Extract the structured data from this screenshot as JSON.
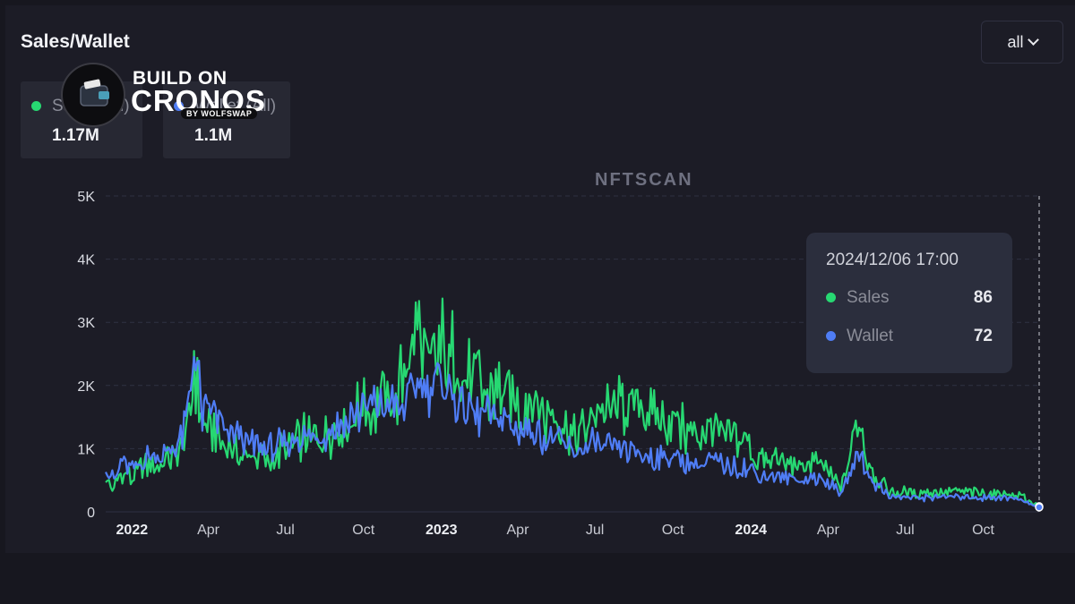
{
  "header": {
    "title": "Sales/Wallet",
    "range_label": "all"
  },
  "stats": [
    {
      "label": "Sales (All)",
      "value": "1.17M",
      "color": "#27d872"
    },
    {
      "label": "Wallet (All)",
      "value": "1.1M",
      "color": "#4f7df5"
    }
  ],
  "logo": {
    "line1": "BUILD ON",
    "line2": "CRONOS",
    "line3": "BY WOLFSWAP"
  },
  "watermark": "NFTSCAN",
  "tooltip": {
    "time": "2024/12/06 17:00",
    "rows": [
      {
        "name": "Sales",
        "value": "86",
        "color": "#27d872"
      },
      {
        "name": "Wallet",
        "value": "72",
        "color": "#4f7df5"
      }
    ]
  },
  "chart_data": {
    "type": "area",
    "x_range": [
      "2021-12-01",
      "2024-12-06"
    ],
    "ylim": [
      0,
      5000
    ],
    "y_ticks": [
      0,
      1000,
      2000,
      3000,
      4000,
      5000
    ],
    "y_tick_labels": [
      "0",
      "1K",
      "2K",
      "3K",
      "4K",
      "5K"
    ],
    "x_ticks": [
      {
        "date": "2022-01-01",
        "label": "2022",
        "bold": true
      },
      {
        "date": "2022-04-01",
        "label": "Apr",
        "bold": false
      },
      {
        "date": "2022-07-01",
        "label": "Jul",
        "bold": false
      },
      {
        "date": "2022-10-01",
        "label": "Oct",
        "bold": false
      },
      {
        "date": "2023-01-01",
        "label": "2023",
        "bold": true
      },
      {
        "date": "2023-04-01",
        "label": "Apr",
        "bold": false
      },
      {
        "date": "2023-07-01",
        "label": "Jul",
        "bold": false
      },
      {
        "date": "2023-10-01",
        "label": "Oct",
        "bold": false
      },
      {
        "date": "2024-01-01",
        "label": "2024",
        "bold": true
      },
      {
        "date": "2024-04-01",
        "label": "Apr",
        "bold": false
      },
      {
        "date": "2024-07-01",
        "label": "Jul",
        "bold": false
      },
      {
        "date": "2024-10-01",
        "label": "Oct",
        "bold": false
      }
    ],
    "grid": "horizontal dashed",
    "series": [
      {
        "name": "Sales",
        "color": "#27d872",
        "points": [
          [
            "2021-12-01",
            500
          ],
          [
            "2021-12-10",
            350
          ],
          [
            "2021-12-20",
            650
          ],
          [
            "2022-01-01",
            520
          ],
          [
            "2022-01-15",
            700
          ],
          [
            "2022-02-01",
            780
          ],
          [
            "2022-02-15",
            800
          ],
          [
            "2022-03-01",
            1000
          ],
          [
            "2022-03-10",
            1500
          ],
          [
            "2022-03-15",
            2300
          ],
          [
            "2022-03-25",
            1400
          ],
          [
            "2022-04-10",
            1300
          ],
          [
            "2022-04-25",
            1000
          ],
          [
            "2022-05-10",
            950
          ],
          [
            "2022-05-25",
            900
          ],
          [
            "2022-06-10",
            850
          ],
          [
            "2022-06-25",
            950
          ],
          [
            "2022-07-10",
            1000
          ],
          [
            "2022-07-25",
            1200
          ],
          [
            "2022-08-10",
            1150
          ],
          [
            "2022-08-25",
            1250
          ],
          [
            "2022-09-10",
            1400
          ],
          [
            "2022-09-25",
            1550
          ],
          [
            "2022-10-10",
            1750
          ],
          [
            "2022-10-25",
            1750
          ],
          [
            "2022-11-10",
            1850
          ],
          [
            "2022-11-25",
            2300
          ],
          [
            "2022-12-05",
            2900
          ],
          [
            "2022-12-15",
            2400
          ],
          [
            "2023-01-01",
            2600
          ],
          [
            "2023-01-15",
            2400
          ],
          [
            "2023-02-01",
            2100
          ],
          [
            "2023-02-15",
            1950
          ],
          [
            "2023-03-01",
            1900
          ],
          [
            "2023-03-15",
            1850
          ],
          [
            "2023-04-01",
            1750
          ],
          [
            "2023-04-15",
            1700
          ],
          [
            "2023-05-01",
            1600
          ],
          [
            "2023-05-15",
            1500
          ],
          [
            "2023-06-01",
            1300
          ],
          [
            "2023-06-15",
            1200
          ],
          [
            "2023-07-01",
            1600
          ],
          [
            "2023-07-15",
            1500
          ],
          [
            "2023-08-01",
            1700
          ],
          [
            "2023-08-15",
            1650
          ],
          [
            "2023-09-01",
            1500
          ],
          [
            "2023-09-15",
            1400
          ],
          [
            "2023-10-01",
            1550
          ],
          [
            "2023-10-15",
            1300
          ],
          [
            "2023-11-01",
            1200
          ],
          [
            "2023-11-20",
            1300
          ],
          [
            "2023-12-01",
            1100
          ],
          [
            "2023-12-15",
            1150
          ],
          [
            "2024-01-01",
            1000
          ],
          [
            "2024-01-15",
            800
          ],
          [
            "2024-02-01",
            850
          ],
          [
            "2024-02-15",
            750
          ],
          [
            "2024-03-01",
            700
          ],
          [
            "2024-03-15",
            800
          ],
          [
            "2024-04-01",
            600
          ],
          [
            "2024-04-15",
            400
          ],
          [
            "2024-04-25",
            700
          ],
          [
            "2024-05-08",
            1500
          ],
          [
            "2024-05-15",
            900
          ],
          [
            "2024-05-25",
            600
          ],
          [
            "2024-06-15",
            300
          ],
          [
            "2024-07-01",
            300
          ],
          [
            "2024-07-15",
            280
          ],
          [
            "2024-08-01",
            300
          ],
          [
            "2024-08-15",
            320
          ],
          [
            "2024-09-01",
            330
          ],
          [
            "2024-09-15",
            300
          ],
          [
            "2024-10-01",
            280
          ],
          [
            "2024-10-15",
            300
          ],
          [
            "2024-11-01",
            280
          ],
          [
            "2024-11-15",
            250
          ],
          [
            "2024-12-06",
            86
          ]
        ]
      },
      {
        "name": "Wallet",
        "color": "#4f7df5",
        "points": [
          [
            "2021-12-01",
            700
          ],
          [
            "2021-12-10",
            500
          ],
          [
            "2021-12-20",
            800
          ],
          [
            "2022-01-01",
            650
          ],
          [
            "2022-01-15",
            850
          ],
          [
            "2022-02-01",
            900
          ],
          [
            "2022-02-15",
            950
          ],
          [
            "2022-03-01",
            1200
          ],
          [
            "2022-03-10",
            1700
          ],
          [
            "2022-03-15",
            2600
          ],
          [
            "2022-03-25",
            1600
          ],
          [
            "2022-04-10",
            1550
          ],
          [
            "2022-04-25",
            1200
          ],
          [
            "2022-05-10",
            1150
          ],
          [
            "2022-05-25",
            1050
          ],
          [
            "2022-06-10",
            1000
          ],
          [
            "2022-06-25",
            1050
          ],
          [
            "2022-07-10",
            1050
          ],
          [
            "2022-07-25",
            1250
          ],
          [
            "2022-08-10",
            1200
          ],
          [
            "2022-08-25",
            1300
          ],
          [
            "2022-09-10",
            1450
          ],
          [
            "2022-09-25",
            1550
          ],
          [
            "2022-10-10",
            1700
          ],
          [
            "2022-10-25",
            1650
          ],
          [
            "2022-11-10",
            1700
          ],
          [
            "2022-11-25",
            1900
          ],
          [
            "2022-12-05",
            2200
          ],
          [
            "2022-12-15",
            1950
          ],
          [
            "2023-01-01",
            2000
          ],
          [
            "2023-01-15",
            1850
          ],
          [
            "2023-02-01",
            1650
          ],
          [
            "2023-02-15",
            1550
          ],
          [
            "2023-03-01",
            1500
          ],
          [
            "2023-03-15",
            1450
          ],
          [
            "2023-04-01",
            1350
          ],
          [
            "2023-04-15",
            1300
          ],
          [
            "2023-05-01",
            1200
          ],
          [
            "2023-05-15",
            1150
          ],
          [
            "2023-06-01",
            1000
          ],
          [
            "2023-06-15",
            950
          ],
          [
            "2023-07-01",
            1100
          ],
          [
            "2023-07-15",
            1000
          ],
          [
            "2023-08-01",
            1050
          ],
          [
            "2023-08-15",
            950
          ],
          [
            "2023-09-01",
            900
          ],
          [
            "2023-09-15",
            850
          ],
          [
            "2023-10-01",
            900
          ],
          [
            "2023-10-15",
            800
          ],
          [
            "2023-11-01",
            780
          ],
          [
            "2023-11-20",
            800
          ],
          [
            "2023-12-01",
            700
          ],
          [
            "2023-12-15",
            750
          ],
          [
            "2024-01-01",
            650
          ],
          [
            "2024-01-15",
            550
          ],
          [
            "2024-02-01",
            600
          ],
          [
            "2024-02-15",
            550
          ],
          [
            "2024-03-01",
            500
          ],
          [
            "2024-03-15",
            550
          ],
          [
            "2024-04-01",
            450
          ],
          [
            "2024-04-15",
            300
          ],
          [
            "2024-04-25",
            500
          ],
          [
            "2024-05-08",
            1000
          ],
          [
            "2024-05-15",
            650
          ],
          [
            "2024-05-25",
            450
          ],
          [
            "2024-06-15",
            250
          ],
          [
            "2024-07-01",
            230
          ],
          [
            "2024-07-15",
            220
          ],
          [
            "2024-08-01",
            230
          ],
          [
            "2024-08-15",
            240
          ],
          [
            "2024-09-01",
            250
          ],
          [
            "2024-09-15",
            230
          ],
          [
            "2024-10-01",
            220
          ],
          [
            "2024-10-15",
            230
          ],
          [
            "2024-11-01",
            210
          ],
          [
            "2024-11-15",
            190
          ],
          [
            "2024-12-06",
            72
          ]
        ]
      }
    ]
  }
}
